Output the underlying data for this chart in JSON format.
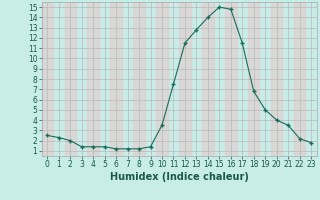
{
  "x": [
    0,
    1,
    2,
    3,
    4,
    5,
    6,
    7,
    8,
    9,
    10,
    11,
    12,
    13,
    14,
    15,
    16,
    17,
    18,
    19,
    20,
    21,
    22,
    23
  ],
  "y": [
    2.5,
    2.3,
    2.0,
    1.4,
    1.4,
    1.4,
    1.2,
    1.2,
    1.2,
    1.4,
    3.5,
    7.5,
    11.5,
    12.8,
    14.0,
    15.0,
    14.8,
    11.5,
    6.8,
    5.0,
    4.0,
    3.5,
    2.2,
    1.8
  ],
  "line_color": "#1a6b5a",
  "marker": "+",
  "marker_size": 3,
  "marker_lw": 1.0,
  "bg_color": "#c8ece8",
  "grid_color_minor": "#e0c8c8",
  "grid_color_major": "#b8b8b8",
  "xlabel": "Humidex (Indice chaleur)",
  "xlim": [
    -0.5,
    23.5
  ],
  "ylim": [
    0.5,
    15.5
  ],
  "yticks": [
    1,
    2,
    3,
    4,
    5,
    6,
    7,
    8,
    9,
    10,
    11,
    12,
    13,
    14,
    15
  ],
  "xticks": [
    0,
    1,
    2,
    3,
    4,
    5,
    6,
    7,
    8,
    9,
    10,
    11,
    12,
    13,
    14,
    15,
    16,
    17,
    18,
    19,
    20,
    21,
    22,
    23
  ],
  "tick_label_fontsize": 5.5,
  "xlabel_fontsize": 7.0,
  "label_color": "#1a5a4a",
  "spine_color": "#aaaaaa"
}
